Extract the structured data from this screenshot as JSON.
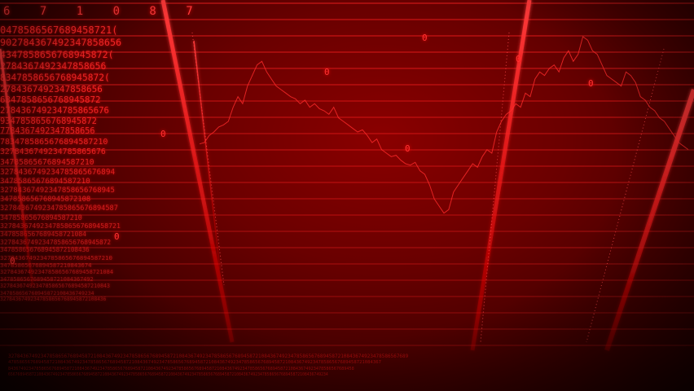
{
  "scene": {
    "description_tags": [
      "red-ticker-digits",
      "stock-price-line",
      "grid"
    ],
    "colors": {
      "background": "#6a0000",
      "glow": "#ff1a1a",
      "digits": "#ff2a2a",
      "chart_line": "#ff3030"
    }
  },
  "top_digits": "6 7 1 0 8 7",
  "digit_rows": [
    "0478586567689458721(",
    "902784367492347858656",
    "4347858656768945872(",
    "2784367492347858656",
    "8347858656768945872(",
    "2784367492347858656",
    "6347858656768945872",
    "278436749234785865676",
    "9347858656768945872",
    "7784367492347858656",
    "7834785865676894587210",
    "3278436749234785865676",
    "34785865676894587210",
    "3278436749234785865676894",
    "34785865676894587210",
    "32784367492347858656768945",
    "347858656768945872108",
    "3278436749234785865676894587",
    "34785865676894587210",
    "327843674923478586567689458721",
    "3478586567689458721084",
    "32784367492347858656768945872",
    "347858656768945872108436",
    "3278436749234785865676894587210",
    "34785865676894587210843674",
    "327843674923478586567689458721084",
    "3478586567689458721084367492",
    "3278436749234785865676894587210843",
    "347858656768945872108436749234",
    "32784367492347858656768945872108436"
  ],
  "bottom_rows": [
    "3278436749234785865676894587210843674923478586567689458721084367492347858656768945872108436749234785865676894587210843674923478586567689",
    "4785865676894587210843674923478586567689458721084367492347858656768945872108436749234785865676894587210843674923478586567689458721084367",
    "8436749234785865676894587210843674923478586567689458721084367492347858656768945872108436749234785865676894587210843674923478586567689458",
    "6567689458721084367492347858656768945872108436749234785865676894587210843674923478586567689458721084367492347858656768945872108436749234"
  ],
  "float_digits": [
    "0",
    "0",
    "0",
    "0",
    "0",
    "0",
    "0",
    "0"
  ],
  "chart_data": {
    "type": "line",
    "note_values": [
      148,
      150,
      160,
      165,
      172,
      175,
      180,
      200,
      215,
      205,
      230,
      245,
      260,
      265,
      250,
      240,
      230,
      225,
      220,
      215,
      212,
      205,
      210,
      200,
      205,
      198,
      195,
      190,
      200,
      185,
      180,
      175,
      170,
      165,
      168,
      160,
      150,
      155,
      140,
      135,
      130,
      132,
      125,
      120,
      118,
      122,
      110,
      105,
      90,
      70,
      60,
      50,
      55,
      80,
      90,
      100,
      110,
      120,
      115,
      130,
      140,
      135,
      165,
      180,
      190,
      195,
      205,
      200,
      220,
      215,
      240,
      250,
      245,
      255,
      260,
      250,
      270,
      280,
      265,
      275,
      300,
      295,
      280,
      275,
      260,
      245,
      240,
      235,
      230,
      250,
      245,
      235,
      215,
      210,
      200,
      195,
      185,
      180,
      170,
      160,
      150,
      145,
      140
    ]
  }
}
